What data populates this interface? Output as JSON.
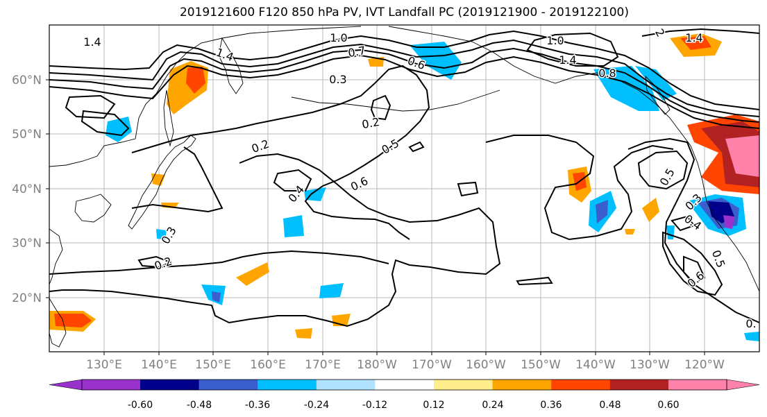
{
  "title": "2019121600 F120 850 hPa PV, IVT Landfall PC (2019121900 - 2019122100)",
  "lat_labels": [
    "60°N",
    "50°N",
    "40°N",
    "30°N",
    "20°N"
  ],
  "lon_labels": [
    "130°E",
    "140°E",
    "150°E",
    "160°E",
    "170°E",
    "180°W",
    "170°W",
    "160°W",
    "150°W",
    "140°W",
    "130°W",
    "120°W"
  ],
  "contour_labels": [
    "1.4",
    "1.0",
    "0.7",
    "0.6",
    "0.3",
    "1.0",
    "1.4",
    "1.4",
    "0.8",
    "0.2",
    "0.2",
    "0.5",
    "0.6",
    "0.4",
    "0.3",
    "0.2",
    "0.5",
    "0.4",
    "0.5",
    "0.6",
    "0.3",
    "0.",
    "1.4",
    "2"
  ],
  "colorbar": {
    "tick_labels": [
      "-0.60",
      "-0.48",
      "-0.36",
      "-0.24",
      "-0.12",
      "0.12",
      "0.24",
      "0.36",
      "0.48",
      "0.60"
    ],
    "colors": [
      "#9932cc",
      "#00008b",
      "#3a5fcd",
      "#00bfff",
      "#b0e2ff",
      "#ffffff",
      "#ffec8b",
      "#ffa500",
      "#ff4500",
      "#b22222",
      "#ff82ab"
    ]
  }
}
